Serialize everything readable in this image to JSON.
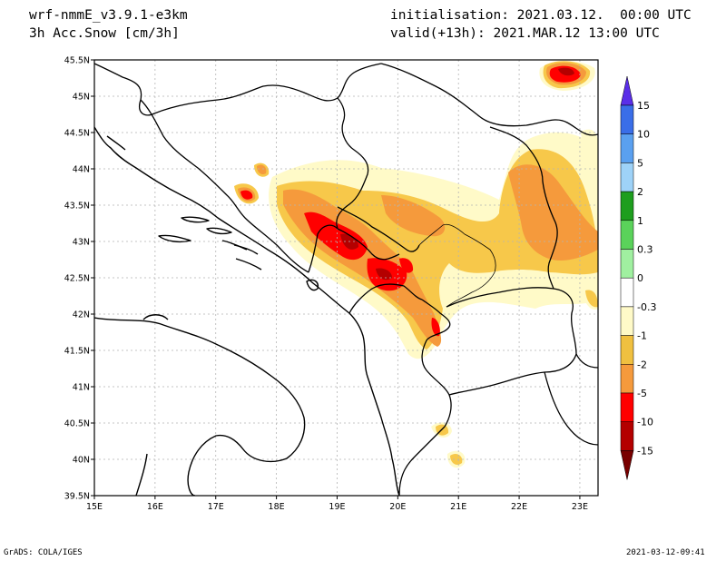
{
  "header": {
    "model": "wrf-nmmE_v3.9.1-e3km",
    "field": "3h Acc.Snow [cm/3h]",
    "init": "initialisation: 2021.03.12.  00:00 UTC",
    "valid": "valid(+13h): 2021.MAR.12 13:00 UTC"
  },
  "footer": {
    "credit": "GrADS: COLA/IGES",
    "timestamp": "2021-03-12-09:41"
  },
  "map": {
    "lon_range": [
      15,
      23.3
    ],
    "lat_range": [
      39.5,
      45.5
    ],
    "x_ticks": [
      "15E",
      "16E",
      "17E",
      "18E",
      "19E",
      "20E",
      "21E",
      "22E",
      "23E"
    ],
    "y_ticks": [
      "39.5N",
      "40N",
      "40.5N",
      "41N",
      "41.5N",
      "42N",
      "42.5N",
      "43N",
      "43.5N",
      "44N",
      "44.5N",
      "45N",
      "45.5N"
    ]
  },
  "colorbar": {
    "labels": [
      "15",
      "10",
      "5",
      "2",
      "1",
      "0.3",
      "0",
      "-0.3",
      "-1",
      "-2",
      "-5",
      "-10",
      "-15"
    ],
    "colors": [
      "#5a2ee8",
      "#3a6ee8",
      "#5aa0f0",
      "#9ed2f8",
      "#1e9e1e",
      "#5ad25a",
      "#a0f0a0",
      "#ffffff",
      "#fffac8",
      "#f0c040",
      "#f59a3c",
      "#ff0000",
      "#b40000",
      "#780000"
    ]
  },
  "snow_colors": {
    "light": "#fffac8",
    "low": "#f7c84a",
    "mid": "#f59a3c",
    "high": "#ff0000",
    "extreme": "#b40000"
  }
}
